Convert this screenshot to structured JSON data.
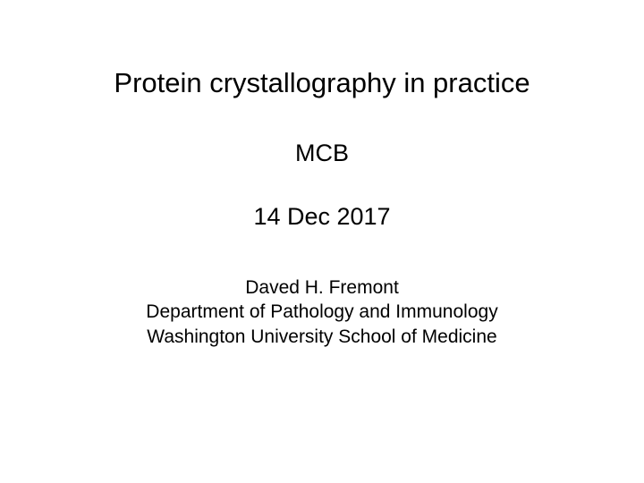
{
  "slide": {
    "title": "Protein crystallography in practice",
    "course": "MCB",
    "date": "14 Dec 2017",
    "author": {
      "name": "Daved H. Fremont",
      "department": "Department of Pathology and Immunology",
      "institution": "Washington University School of Medicine"
    }
  },
  "style": {
    "background_color": "#ffffff",
    "text_color": "#000000",
    "title_fontsize": 31,
    "subtitle_fontsize": 27,
    "body_fontsize": 21,
    "font_family": "Arial"
  }
}
